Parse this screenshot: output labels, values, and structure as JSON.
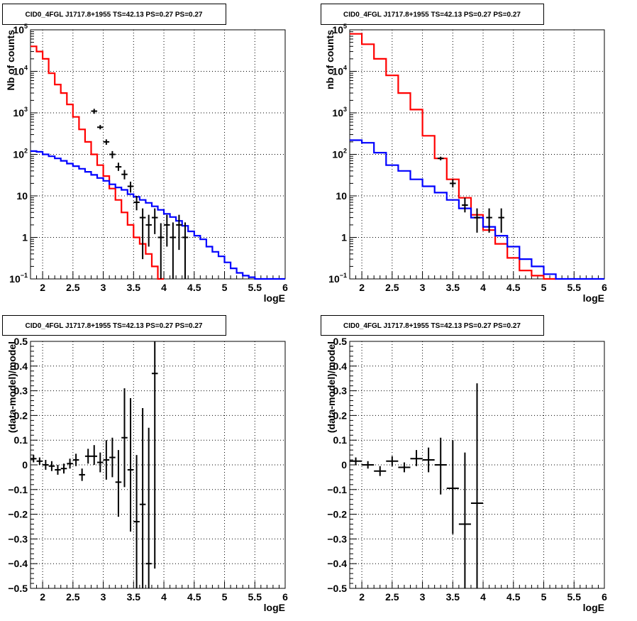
{
  "chart_data": [
    {
      "type": "line",
      "title": "CID0_4FGL J1717.8+1955 TS=42.13 PS=0.27 PS=0.27",
      "xlabel": "logE",
      "ylabel": "Nb of counts",
      "yscale": "log",
      "xlim": [
        1.8,
        6
      ],
      "ylim": [
        0.1,
        100000
      ],
      "grid": true,
      "x_ticks": [
        "2",
        "2.5",
        "3",
        "3.5",
        "4",
        "4.5",
        "5",
        "5.5",
        "6"
      ],
      "y_ticks": [
        {
          "value": 0.1,
          "base": "10",
          "exp": "−1"
        },
        {
          "value": 1,
          "base": "1",
          "exp": ""
        },
        {
          "value": 10,
          "base": "10",
          "exp": ""
        },
        {
          "value": 100,
          "base": "10",
          "exp": "2"
        },
        {
          "value": 1000,
          "base": "10",
          "exp": "3"
        },
        {
          "value": 10000,
          "base": "10",
          "exp": "4"
        },
        {
          "value": 100000,
          "base": "10",
          "exp": "5"
        }
      ],
      "bin_edges": [
        1.8,
        1.9,
        2.0,
        2.1,
        2.2,
        2.3,
        2.4,
        2.5,
        2.6,
        2.7,
        2.8,
        2.9,
        3.0,
        3.1,
        3.2,
        3.3,
        3.4,
        3.5,
        3.6,
        3.7,
        3.8,
        3.9,
        4.0,
        4.1,
        4.2,
        4.3,
        4.4,
        4.5,
        4.6,
        4.7,
        4.8,
        4.9,
        5.0,
        5.1,
        5.2,
        5.3,
        5.4,
        5.5,
        5.6,
        5.7,
        5.8,
        5.9,
        6.0
      ],
      "series": [
        {
          "color": "#ff0000",
          "style": "step",
          "values": [
            40000,
            30000,
            20000,
            9000,
            4800,
            3000,
            1600,
            800,
            400,
            200,
            100,
            55,
            30,
            15,
            8,
            4,
            2,
            1,
            0.7,
            0.4,
            0.2,
            0.1
          ]
        },
        {
          "color": "#0000ff",
          "style": "step",
          "values": [
            120,
            115,
            100,
            90,
            80,
            70,
            60,
            52,
            45,
            38,
            32,
            27,
            23,
            19,
            16,
            14,
            11,
            9.5,
            8,
            6.8,
            5.6,
            4.6,
            3.7,
            3.1,
            2.5,
            1.9,
            1.4,
            1.1,
            0.9,
            0.6,
            0.45,
            0.35,
            0.25,
            0.18,
            0.14,
            0.12,
            0.11,
            0.1,
            0.1,
            0.1,
            0.1,
            0.1
          ]
        },
        {
          "color": "#000000",
          "style": "points",
          "points": [
            {
              "x": 2.85,
              "y": 1100,
              "ylo": 950,
              "yhi": 1250
            },
            {
              "x": 2.95,
              "y": 450,
              "ylo": 400,
              "yhi": 510
            },
            {
              "x": 3.05,
              "y": 200,
              "ylo": 170,
              "yhi": 230
            },
            {
              "x": 3.15,
              "y": 100,
              "ylo": 80,
              "yhi": 120
            },
            {
              "x": 3.25,
              "y": 50,
              "ylo": 40,
              "yhi": 63
            },
            {
              "x": 3.35,
              "y": 33,
              "ylo": 25,
              "yhi": 42
            },
            {
              "x": 3.45,
              "y": 17,
              "ylo": 12,
              "yhi": 22
            },
            {
              "x": 3.55,
              "y": 7,
              "ylo": 4.5,
              "yhi": 10
            },
            {
              "x": 3.65,
              "y": 3,
              "ylo": 0.3,
              "yhi": 5
            },
            {
              "x": 3.75,
              "y": 2,
              "ylo": 0.6,
              "yhi": 3.5
            },
            {
              "x": 3.85,
              "y": 3,
              "ylo": 1.2,
              "yhi": 5
            },
            {
              "x": 3.95,
              "y": 1,
              "ylo": 0.1,
              "yhi": 2.2
            },
            {
              "x": 4.05,
              "y": 2,
              "ylo": 0.6,
              "yhi": 3.5
            },
            {
              "x": 4.15,
              "y": 1,
              "ylo": 0.1,
              "yhi": 2.3
            },
            {
              "x": 4.25,
              "y": 2,
              "ylo": 0.5,
              "yhi": 3.5
            },
            {
              "x": 4.35,
              "y": 1,
              "ylo": 0.1,
              "yhi": 2.3
            }
          ]
        }
      ]
    },
    {
      "type": "line",
      "title": "CID0_4FGL J1717.8+1955 TS=42.13 PS=0.27 PS=0.27",
      "xlabel": "logE",
      "ylabel": "nb of counts",
      "yscale": "log",
      "xlim": [
        1.8,
        6
      ],
      "ylim": [
        0.1,
        100000
      ],
      "grid": true,
      "x_ticks": [
        "2",
        "2.5",
        "3",
        "3.5",
        "4",
        "4.5",
        "5",
        "5.5",
        "6"
      ],
      "y_ticks": [
        {
          "value": 0.1,
          "base": "10",
          "exp": "−1"
        },
        {
          "value": 1,
          "base": "1",
          "exp": ""
        },
        {
          "value": 10,
          "base": "10",
          "exp": ""
        },
        {
          "value": 100,
          "base": "10",
          "exp": "2"
        },
        {
          "value": 1000,
          "base": "10",
          "exp": "3"
        },
        {
          "value": 10000,
          "base": "10",
          "exp": "4"
        },
        {
          "value": 100000,
          "base": "10",
          "exp": "5"
        }
      ],
      "bin_edges": [
        1.8,
        2.0,
        2.2,
        2.4,
        2.6,
        2.8,
        3.0,
        3.2,
        3.4,
        3.6,
        3.8,
        4.0,
        4.2,
        4.4,
        4.6,
        4.8,
        5.0,
        5.2,
        5.4,
        5.6,
        5.8,
        6.0
      ],
      "series": [
        {
          "color": "#ff0000",
          "style": "step",
          "values": [
            80000,
            45000,
            20000,
            8000,
            3000,
            1200,
            280,
            80,
            25,
            9,
            3.5,
            1.5,
            0.7,
            0.32,
            0.16,
            0.12,
            0.1
          ]
        },
        {
          "color": "#0000ff",
          "style": "step",
          "values": [
            220,
            190,
            110,
            55,
            40,
            25,
            17,
            12,
            8,
            5,
            3,
            1.8,
            1.1,
            0.6,
            0.3,
            0.2,
            0.13,
            0.1,
            0.1,
            0.1,
            0.1
          ]
        },
        {
          "color": "#000000",
          "style": "points",
          "points": [
            {
              "x": 3.3,
              "y": 80,
              "ylo": 72,
              "yhi": 88
            },
            {
              "x": 3.5,
              "y": 20,
              "ylo": 16,
              "yhi": 25
            },
            {
              "x": 3.7,
              "y": 6,
              "ylo": 4,
              "yhi": 9
            },
            {
              "x": 3.9,
              "y": 3,
              "ylo": 1.3,
              "yhi": 5
            },
            {
              "x": 4.1,
              "y": 3,
              "ylo": 1.3,
              "yhi": 5
            },
            {
              "x": 4.3,
              "y": 3,
              "ylo": 1.3,
              "yhi": 5
            }
          ]
        }
      ]
    },
    {
      "type": "scatter",
      "title": "CID0_4FGL J1717.8+1955 TS=42.13 PS=0.27 PS=0.27",
      "xlabel": "logE",
      "ylabel": "(data-model)/model",
      "xlim": [
        1.8,
        6
      ],
      "ylim": [
        -0.5,
        0.5
      ],
      "grid": true,
      "x_ticks": [
        "2",
        "2.5",
        "3",
        "3.5",
        "4",
        "4.5",
        "5",
        "5.5",
        "6"
      ],
      "y_ticks": [
        "−0.5",
        "−0.4",
        "−0.3",
        "−0.2",
        "−0.1",
        "0",
        "0.1",
        "0.2",
        "0.3",
        "0.4",
        "0.5"
      ],
      "series": [
        {
          "color": "#000000",
          "points": [
            {
              "x": 1.85,
              "y": 0.025,
              "ylo": 0.01,
              "yhi": 0.04,
              "xerr": 0.05
            },
            {
              "x": 1.95,
              "y": 0.015,
              "ylo": 0.0,
              "yhi": 0.03,
              "xerr": 0.05
            },
            {
              "x": 2.05,
              "y": 0.0,
              "ylo": -0.02,
              "yhi": 0.02,
              "xerr": 0.05
            },
            {
              "x": 2.15,
              "y": -0.005,
              "ylo": -0.025,
              "yhi": 0.015,
              "xerr": 0.05
            },
            {
              "x": 2.25,
              "y": -0.02,
              "ylo": -0.04,
              "yhi": 0.0,
              "xerr": 0.05
            },
            {
              "x": 2.35,
              "y": -0.015,
              "ylo": -0.035,
              "yhi": 0.005,
              "xerr": 0.05
            },
            {
              "x": 2.45,
              "y": 0.005,
              "ylo": -0.015,
              "yhi": 0.025,
              "xerr": 0.05
            },
            {
              "x": 2.55,
              "y": 0.02,
              "ylo": -0.005,
              "yhi": 0.045,
              "xerr": 0.05
            },
            {
              "x": 2.65,
              "y": -0.04,
              "ylo": -0.065,
              "yhi": -0.015,
              "xerr": 0.05
            },
            {
              "x": 2.75,
              "y": 0.035,
              "ylo": 0.005,
              "yhi": 0.065,
              "xerr": 0.05
            },
            {
              "x": 2.85,
              "y": 0.035,
              "ylo": 0.0,
              "yhi": 0.08,
              "xerr": 0.05
            },
            {
              "x": 2.95,
              "y": 0.01,
              "ylo": -0.03,
              "yhi": 0.05,
              "xerr": 0.05
            },
            {
              "x": 3.05,
              "y": 0.02,
              "ylo": -0.06,
              "yhi": 0.1,
              "xerr": 0.05
            },
            {
              "x": 3.15,
              "y": 0.03,
              "ylo": -0.05,
              "yhi": 0.11,
              "xerr": 0.05
            },
            {
              "x": 3.25,
              "y": -0.07,
              "ylo": -0.21,
              "yhi": 0.06,
              "xerr": 0.05
            },
            {
              "x": 3.35,
              "y": 0.11,
              "ylo": -0.09,
              "yhi": 0.31,
              "xerr": 0.05
            },
            {
              "x": 3.45,
              "y": -0.02,
              "ylo": -0.27,
              "yhi": 0.27,
              "xerr": 0.05
            },
            {
              "x": 3.55,
              "y": -0.23,
              "ylo": -0.5,
              "yhi": 0.04,
              "xerr": 0.05
            },
            {
              "x": 3.65,
              "y": -0.16,
              "ylo": -0.5,
              "yhi": 0.23,
              "xerr": 0.05
            },
            {
              "x": 3.75,
              "y": -0.4,
              "ylo": -0.5,
              "yhi": 0.15,
              "xerr": 0.05
            },
            {
              "x": 3.85,
              "y": 0.37,
              "ylo": -0.42,
              "yhi": 0.5,
              "xerr": 0.05
            }
          ]
        }
      ]
    },
    {
      "type": "scatter",
      "title": "CID0_4FGL J1717.8+1955 TS=42.13 PS=0.27 PS=0.27",
      "xlabel": "logE",
      "ylabel": "(data-model)/model",
      "xlim": [
        1.8,
        6
      ],
      "ylim": [
        -0.5,
        0.5
      ],
      "grid": true,
      "x_ticks": [
        "2",
        "2.5",
        "3",
        "3.5",
        "4",
        "4.5",
        "5",
        "5.5",
        "6"
      ],
      "y_ticks": [
        "−0.5",
        "−0.4",
        "−0.3",
        "−0.2",
        "−0.1",
        "0",
        "0.1",
        "0.2",
        "0.3",
        "0.4",
        "0.5"
      ],
      "series": [
        {
          "color": "#000000",
          "points": [
            {
              "x": 1.9,
              "y": 0.015,
              "ylo": 0.0,
              "yhi": 0.03,
              "xerr": 0.1
            },
            {
              "x": 2.1,
              "y": 0.0,
              "ylo": -0.015,
              "yhi": 0.015,
              "xerr": 0.1
            },
            {
              "x": 2.3,
              "y": -0.025,
              "ylo": -0.045,
              "yhi": -0.005,
              "xerr": 0.1
            },
            {
              "x": 2.5,
              "y": 0.015,
              "ylo": -0.005,
              "yhi": 0.035,
              "xerr": 0.1
            },
            {
              "x": 2.7,
              "y": -0.01,
              "ylo": -0.03,
              "yhi": 0.01,
              "xerr": 0.1
            },
            {
              "x": 2.9,
              "y": 0.025,
              "ylo": -0.005,
              "yhi": 0.06,
              "xerr": 0.1
            },
            {
              "x": 3.1,
              "y": 0.02,
              "ylo": -0.03,
              "yhi": 0.07,
              "xerr": 0.1
            },
            {
              "x": 3.3,
              "y": 0.0,
              "ylo": -0.12,
              "yhi": 0.11,
              "xerr": 0.1
            },
            {
              "x": 3.5,
              "y": -0.095,
              "ylo": -0.28,
              "yhi": 0.1,
              "xerr": 0.1
            },
            {
              "x": 3.7,
              "y": -0.24,
              "ylo": -0.5,
              "yhi": 0.05,
              "xerr": 0.1
            },
            {
              "x": 3.9,
              "y": -0.155,
              "ylo": -0.5,
              "yhi": 0.33,
              "xerr": 0.1
            }
          ]
        }
      ]
    }
  ]
}
